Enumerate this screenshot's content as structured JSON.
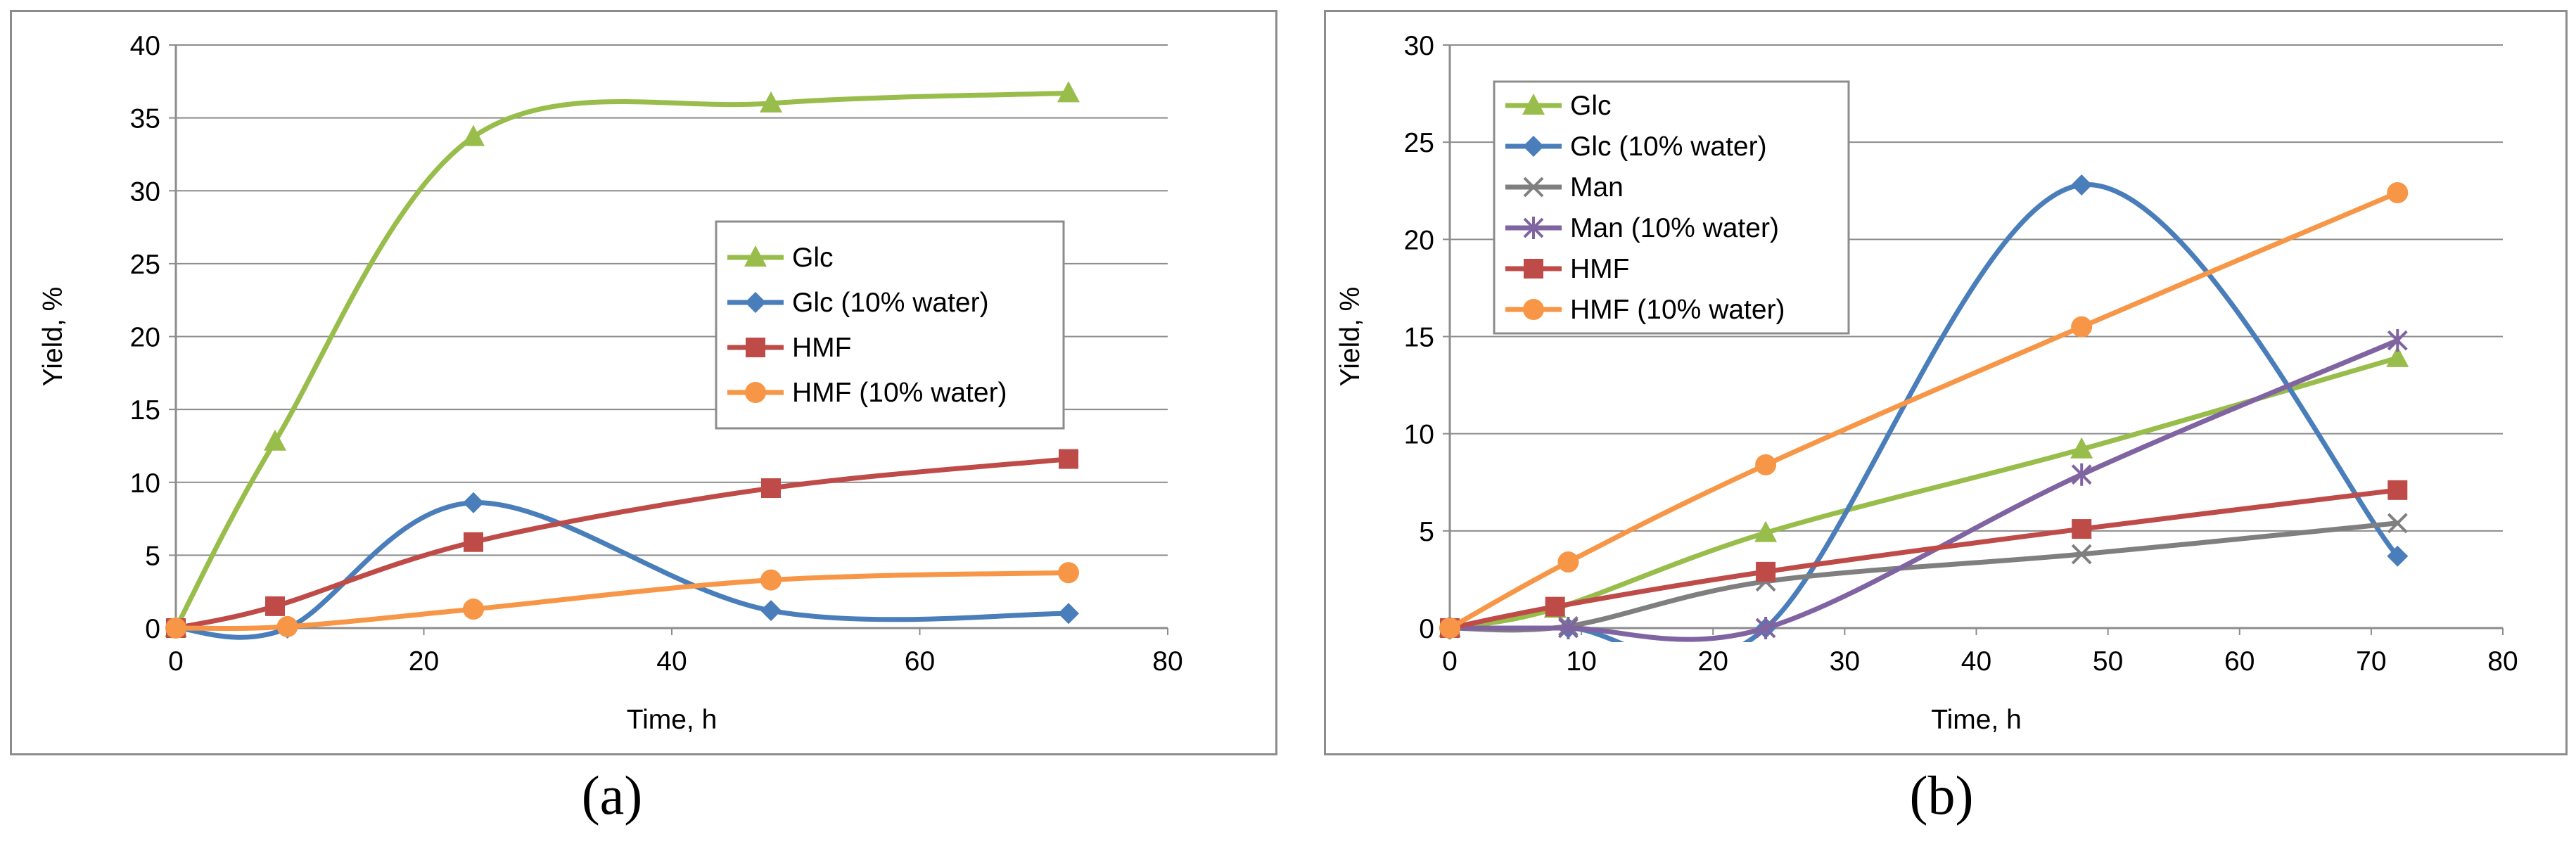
{
  "panel_labels": {
    "a": "(a)",
    "b": "(b)"
  },
  "colors": {
    "glc": "#98bd4b",
    "glc_water": "#4a7ebb",
    "hmf": "#be4b48",
    "hmf_water": "#f79646",
    "man": "#7f7f7f",
    "man_water": "#8064a2",
    "gridline": "#8c8c8c"
  },
  "chart_data": [
    {
      "type": "line",
      "panel": "a",
      "title": "",
      "xlabel": "Time, h",
      "ylabel": "Yield, %",
      "xlim": [
        0,
        80
      ],
      "ylim": [
        0,
        40
      ],
      "xticks": [
        0,
        20,
        40,
        60,
        80
      ],
      "yticks": [
        0,
        5,
        10,
        15,
        20,
        25,
        30,
        35,
        40
      ],
      "legend": "center-right",
      "grid": true,
      "series": [
        {
          "name": "Glc",
          "color": "#98bd4b",
          "marker": "triangle",
          "x": [
            0,
            8,
            24,
            48,
            72
          ],
          "values": [
            0,
            12.8,
            33.7,
            36.0,
            36.7
          ]
        },
        {
          "name": "Glc (10% water)",
          "color": "#4a7ebb",
          "marker": "diamond",
          "x": [
            0,
            9,
            24,
            48,
            72
          ],
          "values": [
            0,
            0,
            8.6,
            1.2,
            1.0
          ]
        },
        {
          "name": "HMF",
          "color": "#be4b48",
          "marker": "square",
          "x": [
            0,
            8,
            24,
            48,
            72
          ],
          "values": [
            0,
            1.5,
            5.9,
            9.6,
            11.6
          ]
        },
        {
          "name": "HMF (10% water)",
          "color": "#f79646",
          "marker": "circle",
          "x": [
            0,
            9,
            24,
            48,
            72
          ],
          "values": [
            0,
            0.1,
            1.3,
            3.3,
            3.8
          ]
        }
      ]
    },
    {
      "type": "line",
      "panel": "b",
      "title": "",
      "xlabel": "Time, h",
      "ylabel": "Yield, %",
      "xlim": [
        0,
        80
      ],
      "ylim": [
        0,
        30
      ],
      "xticks": [
        0,
        10,
        20,
        30,
        40,
        50,
        60,
        70,
        80
      ],
      "yticks": [
        0,
        5,
        10,
        15,
        20,
        25,
        30
      ],
      "legend": "top-left",
      "grid": true,
      "series": [
        {
          "name": "Glc",
          "color": "#98bd4b",
          "marker": "triangle",
          "x": [
            0,
            8,
            24,
            48,
            72
          ],
          "values": [
            0,
            1.0,
            4.9,
            9.2,
            13.9
          ]
        },
        {
          "name": "Glc (10% water)",
          "color": "#4a7ebb",
          "marker": "diamond",
          "x": [
            0,
            9,
            24,
            48,
            72
          ],
          "values": [
            0,
            0,
            0,
            22.8,
            3.7
          ]
        },
        {
          "name": "Man",
          "color": "#7f7f7f",
          "marker": "x",
          "x": [
            0,
            9,
            24,
            48,
            72
          ],
          "values": [
            0,
            0.1,
            2.4,
            3.8,
            5.4
          ]
        },
        {
          "name": "Man (10%  water)",
          "color": "#8064a2",
          "marker": "star",
          "x": [
            0,
            9,
            24,
            48,
            72
          ],
          "values": [
            0,
            0,
            0,
            7.9,
            14.8
          ]
        },
        {
          "name": "HMF",
          "color": "#be4b48",
          "marker": "square",
          "x": [
            0,
            8,
            24,
            48,
            72
          ],
          "values": [
            0,
            1.1,
            2.9,
            5.1,
            7.1
          ]
        },
        {
          "name": "HMF (10% water)",
          "color": "#f79646",
          "marker": "circle",
          "x": [
            0,
            9,
            24,
            48,
            72
          ],
          "values": [
            0,
            3.4,
            8.4,
            15.5,
            22.4
          ]
        }
      ]
    }
  ]
}
